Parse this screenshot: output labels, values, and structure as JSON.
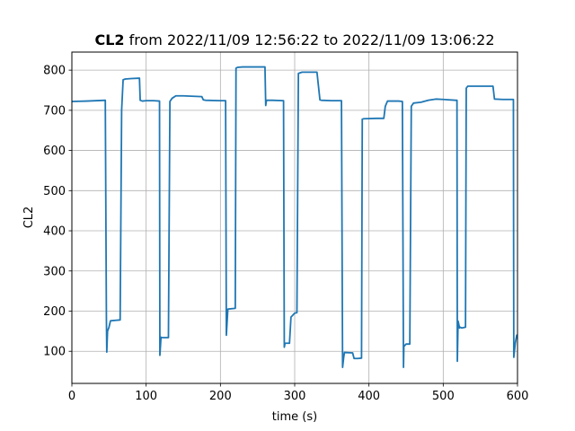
{
  "chart_data": {
    "type": "line",
    "title_bold": "CL2",
    "title_rest": " from 2022/11/09 12:56:22 to 2022/11/09 13:06:22",
    "xlabel": "time (s)",
    "ylabel": "CL2",
    "xlim": [
      0,
      600
    ],
    "ylim": [
      20,
      845
    ],
    "xticks": [
      0,
      100,
      200,
      300,
      400,
      500,
      600
    ],
    "yticks": [
      100,
      200,
      300,
      400,
      500,
      600,
      700,
      800
    ],
    "grid": true,
    "color": "#1f77b4",
    "series": [
      {
        "x": [
          0,
          20,
          45,
          46.5,
          47,
          48,
          50,
          52,
          65,
          67,
          69,
          72,
          80,
          91,
          92,
          95,
          100,
          110,
          118,
          118.5,
          120,
          121,
          130,
          132,
          135,
          140,
          150,
          175,
          177,
          180,
          200,
          207,
          208,
          210,
          220,
          221,
          223,
          230,
          245,
          260,
          261,
          262,
          270,
          285,
          286,
          287,
          293,
          295,
          300,
          303,
          305,
          310,
          330,
          334,
          336,
          350,
          363,
          364.5,
          366,
          367,
          378,
          380,
          385,
          390,
          391,
          393,
          410,
          420,
          422,
          425,
          440,
          445,
          446.5,
          447,
          450,
          455,
          457,
          460,
          470,
          480,
          490,
          500,
          517,
          518.5,
          519,
          520,
          522,
          523,
          525,
          530,
          531,
          533,
          550,
          567,
          569,
          580,
          593,
          594.5,
          595,
          597,
          599,
          600
        ],
        "y": [
          722,
          723,
          725,
          180,
          98,
          150,
          160,
          176,
          178,
          700,
          776,
          778,
          779,
          780,
          725,
          723,
          724,
          724,
          723,
          90,
          135,
          134,
          134,
          722,
          730,
          736,
          736,
          734,
          726,
          725,
          724,
          724,
          140,
          205,
          207,
          805,
          807,
          808,
          808,
          808,
          712,
          725,
          725,
          724,
          110,
          120,
          120,
          185,
          195,
          196,
          792,
          795,
          795,
          726,
          725,
          724,
          724,
          60,
          85,
          97,
          96,
          82,
          82,
          83,
          678,
          679,
          680,
          680,
          710,
          723,
          723,
          722,
          60,
          112,
          118,
          118,
          710,
          718,
          720,
          725,
          728,
          727,
          725,
          725,
          75,
          175,
          158,
          160,
          158,
          160,
          755,
          760,
          760,
          760,
          728,
          727,
          727,
          727,
          85,
          120,
          140,
          140
        ]
      }
    ]
  }
}
